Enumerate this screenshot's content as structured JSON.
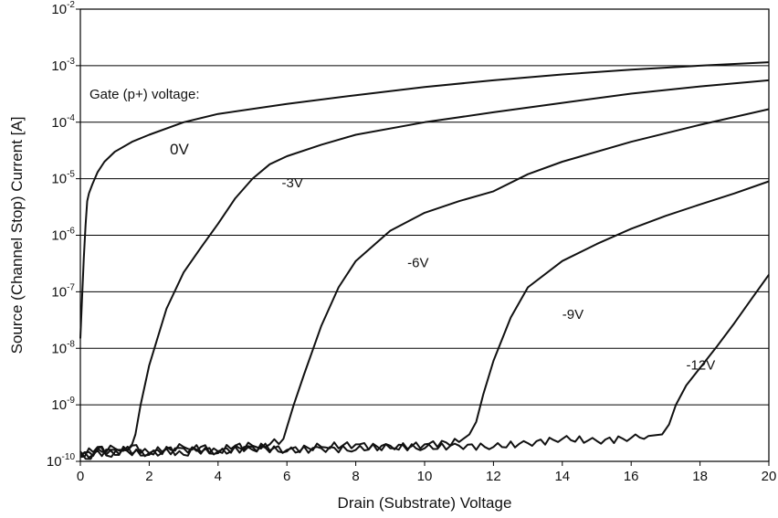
{
  "chart_data": {
    "type": "line",
    "title": "",
    "xlabel": "Drain (Substrate) Voltage",
    "ylabel": "Source (Channel Stop) Current [A]",
    "xlim": [
      0,
      20
    ],
    "ylim": [
      1e-10,
      0.01
    ],
    "yscale": "log",
    "grid": "horizontal",
    "x_ticks": [
      "0",
      "2",
      "4",
      "6",
      "8",
      "10",
      "12",
      "14",
      "16",
      "18",
      "20"
    ],
    "y_ticks": [
      {
        "base": "10",
        "exp": "-10"
      },
      {
        "base": "10",
        "exp": "-9"
      },
      {
        "base": "10",
        "exp": "-8"
      },
      {
        "base": "10",
        "exp": "-7"
      },
      {
        "base": "10",
        "exp": "-6"
      },
      {
        "base": "10",
        "exp": "-5"
      },
      {
        "base": "10",
        "exp": "-4"
      },
      {
        "base": "10",
        "exp": "-3"
      },
      {
        "base": "10",
        "exp": "-2"
      }
    ],
    "annotation": "Gate (p+) voltage:",
    "series": [
      {
        "name": "0V",
        "label_x": 2.6,
        "label_y": 2.7e-05,
        "x": [
          0.0,
          0.05,
          0.1,
          0.15,
          0.2,
          0.25,
          0.35,
          0.5,
          0.7,
          1.0,
          1.5,
          2.0,
          3.0,
          4.0,
          6.0,
          8.0,
          10.0,
          12.0,
          14.0,
          16.0,
          18.0,
          20.0
        ],
        "y": [
          1.5e-08,
          8e-08,
          4e-07,
          1.5e-06,
          4e-06,
          5.5e-06,
          8e-06,
          1.3e-05,
          2e-05,
          3e-05,
          4.5e-05,
          6e-05,
          0.0001,
          0.00014,
          0.00021,
          0.0003,
          0.00042,
          0.00055,
          0.0007,
          0.00085,
          0.001,
          0.00115
        ]
      },
      {
        "name": "-3V",
        "label_x": 5.85,
        "label_y": 7e-06,
        "x": [
          0.0,
          0.3,
          0.6,
          0.9,
          1.2,
          1.5,
          1.6,
          1.75,
          2.0,
          2.5,
          3.0,
          3.5,
          4.0,
          4.5,
          5.0,
          5.5,
          6.0,
          7.0,
          8.0,
          10.0,
          12.0,
          14.0,
          16.0,
          18.0,
          20.0
        ],
        "y": [
          1.5e-10,
          1.1e-10,
          1.8e-10,
          1.2e-10,
          1.6e-10,
          2e-10,
          3e-10,
          1e-09,
          5e-09,
          5e-08,
          2.2e-07,
          6e-07,
          1.6e-06,
          4.5e-06,
          1e-05,
          1.8e-05,
          2.5e-05,
          4e-05,
          6e-05,
          0.0001,
          0.00015,
          0.00022,
          0.00032,
          0.00043,
          0.00055
        ]
      },
      {
        "name": "-6V",
        "label_x": 9.5,
        "label_y": 2.7e-07,
        "x": [
          0.0,
          0.5,
          1.0,
          1.5,
          2.0,
          2.5,
          3.0,
          3.5,
          4.0,
          4.5,
          5.0,
          5.5,
          5.9,
          6.0,
          6.2,
          6.5,
          7.0,
          7.5,
          8.0,
          9.0,
          10.0,
          11.0,
          12.0,
          13.0,
          14.0,
          16.0,
          18.0,
          20.0
        ],
        "y": [
          1.2e-10,
          1.8e-10,
          1.3e-10,
          1.9e-10,
          1.4e-10,
          1.7e-10,
          1.3e-10,
          1.8e-10,
          1.5e-10,
          1.9e-10,
          1.6e-10,
          2e-10,
          2.5e-10,
          4e-10,
          1e-09,
          3.5e-09,
          2.5e-08,
          1.2e-07,
          3.5e-07,
          1.2e-06,
          2.5e-06,
          4e-06,
          6e-06,
          1.2e-05,
          2e-05,
          4.5e-05,
          9e-05,
          0.00017
        ]
      },
      {
        "name": "-9V",
        "label_x": 14.0,
        "label_y": 3.3e-08,
        "x": [
          0.0,
          1.0,
          2.0,
          3.0,
          4.0,
          5.0,
          6.0,
          7.0,
          8.0,
          9.0,
          10.0,
          11.0,
          11.3,
          11.5,
          11.7,
          12.0,
          12.5,
          13.0,
          14.0,
          15.0,
          16.0,
          17.0,
          18.0,
          19.0,
          20.0
        ],
        "y": [
          1.3e-10,
          1.7e-10,
          1.4e-10,
          1.8e-10,
          1.5e-10,
          1.9e-10,
          1.6e-10,
          1.8e-10,
          2e-10,
          1.7e-10,
          2e-10,
          2.2e-10,
          3e-10,
          5e-10,
          1.5e-09,
          6e-09,
          3.5e-08,
          1.2e-07,
          3.5e-07,
          7e-07,
          1.3e-06,
          2.2e-06,
          3.5e-06,
          5.5e-06,
          9e-06
        ]
      },
      {
        "name": "-12V",
        "label_x": 17.6,
        "label_y": 4.2e-09,
        "x": [
          0.0,
          1.0,
          2.0,
          3.0,
          4.0,
          5.0,
          6.0,
          7.0,
          8.0,
          9.0,
          10.0,
          11.0,
          12.0,
          13.0,
          14.0,
          15.0,
          16.0,
          16.5,
          16.9,
          17.1,
          17.3,
          17.6,
          18.0,
          18.5,
          19.0,
          19.5,
          20.0
        ],
        "y": [
          1.2e-10,
          1.6e-10,
          1.3e-10,
          1.7e-10,
          1.4e-10,
          1.8e-10,
          1.5e-10,
          1.7e-10,
          1.6e-10,
          1.9e-10,
          1.7e-10,
          1.9e-10,
          1.8e-10,
          2.1e-10,
          2.5e-10,
          2.3e-10,
          2.6e-10,
          2.8e-10,
          3e-10,
          4.5e-10,
          1e-09,
          2.2e-09,
          4.5e-09,
          1.1e-08,
          2.8e-08,
          7.5e-08,
          2e-07
        ]
      }
    ]
  }
}
